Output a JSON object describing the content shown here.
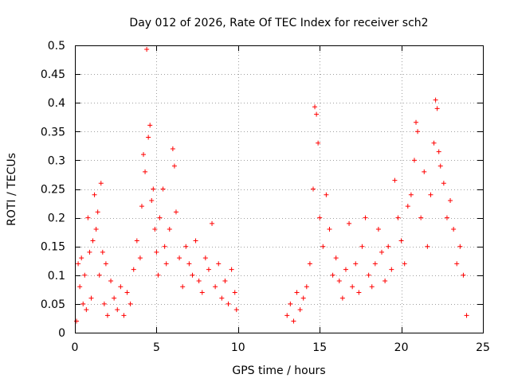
{
  "chart_data": {
    "type": "scatter",
    "title": "Day 012 of 2026, Rate Of TEC Index for receiver sch2",
    "xlabel": "GPS time / hours",
    "ylabel": "ROTI / TECUs",
    "xlim": [
      0,
      25
    ],
    "ylim": [
      0,
      0.5
    ],
    "xticks": [
      0,
      5,
      10,
      15,
      20,
      25
    ],
    "yticks": [
      0,
      0.05,
      0.1,
      0.15,
      0.2,
      0.25,
      0.3,
      0.35,
      0.4,
      0.45,
      0.5
    ],
    "xtick_labels": [
      "0",
      "5",
      "10",
      "15",
      "20",
      "25"
    ],
    "ytick_labels": [
      "0",
      "0.05",
      "0.1",
      "0.15",
      "0.2",
      "0.25",
      "0.3",
      "0.35",
      "0.4",
      "0.45",
      "0.5"
    ],
    "grid": true,
    "marker": "+",
    "marker_color": "#ff0000",
    "series": [
      {
        "points": [
          [
            0.1,
            0.02
          ],
          [
            0.2,
            0.12
          ],
          [
            0.3,
            0.08
          ],
          [
            0.4,
            0.13
          ],
          [
            0.5,
            0.05
          ],
          [
            0.6,
            0.1
          ],
          [
            0.7,
            0.04
          ],
          [
            0.8,
            0.2
          ],
          [
            0.9,
            0.14
          ],
          [
            1.0,
            0.06
          ],
          [
            1.1,
            0.16
          ],
          [
            1.2,
            0.24
          ],
          [
            1.3,
            0.18
          ],
          [
            1.4,
            0.21
          ],
          [
            1.5,
            0.1
          ],
          [
            1.6,
            0.26
          ],
          [
            1.7,
            0.14
          ],
          [
            1.8,
            0.05
          ],
          [
            1.9,
            0.12
          ],
          [
            2.0,
            0.03
          ],
          [
            2.2,
            0.09
          ],
          [
            2.4,
            0.06
          ],
          [
            2.6,
            0.04
          ],
          [
            2.8,
            0.08
          ],
          [
            3.0,
            0.03
          ],
          [
            3.2,
            0.07
          ],
          [
            3.4,
            0.05
          ],
          [
            3.6,
            0.11
          ],
          [
            3.8,
            0.16
          ],
          [
            4.0,
            0.13
          ],
          [
            4.1,
            0.22
          ],
          [
            4.2,
            0.31
          ],
          [
            4.3,
            0.28
          ],
          [
            4.4,
            0.493
          ],
          [
            4.5,
            0.34
          ],
          [
            4.6,
            0.361
          ],
          [
            4.7,
            0.23
          ],
          [
            4.8,
            0.25
          ],
          [
            4.9,
            0.18
          ],
          [
            5.0,
            0.14
          ],
          [
            5.1,
            0.1
          ],
          [
            5.2,
            0.2
          ],
          [
            5.4,
            0.25
          ],
          [
            5.5,
            0.15
          ],
          [
            5.6,
            0.12
          ],
          [
            5.8,
            0.18
          ],
          [
            6.0,
            0.32
          ],
          [
            6.1,
            0.29
          ],
          [
            6.2,
            0.21
          ],
          [
            6.4,
            0.13
          ],
          [
            6.6,
            0.08
          ],
          [
            6.8,
            0.15
          ],
          [
            7.0,
            0.12
          ],
          [
            7.2,
            0.1
          ],
          [
            7.4,
            0.16
          ],
          [
            7.6,
            0.09
          ],
          [
            7.8,
            0.07
          ],
          [
            8.0,
            0.13
          ],
          [
            8.2,
            0.11
          ],
          [
            8.4,
            0.19
          ],
          [
            8.6,
            0.08
          ],
          [
            8.8,
            0.12
          ],
          [
            9.0,
            0.06
          ],
          [
            9.2,
            0.09
          ],
          [
            9.4,
            0.05
          ],
          [
            9.6,
            0.11
          ],
          [
            9.8,
            0.07
          ],
          [
            9.9,
            0.04
          ],
          [
            13.0,
            0.03
          ],
          [
            13.2,
            0.05
          ],
          [
            13.4,
            0.02
          ],
          [
            13.6,
            0.07
          ],
          [
            13.8,
            0.04
          ],
          [
            14.0,
            0.06
          ],
          [
            14.2,
            0.08
          ],
          [
            14.4,
            0.12
          ],
          [
            14.6,
            0.25
          ],
          [
            14.7,
            0.393
          ],
          [
            14.8,
            0.38
          ],
          [
            14.9,
            0.33
          ],
          [
            15.0,
            0.2
          ],
          [
            15.2,
            0.15
          ],
          [
            15.4,
            0.24
          ],
          [
            15.6,
            0.18
          ],
          [
            15.8,
            0.1
          ],
          [
            16.0,
            0.13
          ],
          [
            16.2,
            0.09
          ],
          [
            16.4,
            0.06
          ],
          [
            16.6,
            0.11
          ],
          [
            16.8,
            0.19
          ],
          [
            17.0,
            0.08
          ],
          [
            17.2,
            0.12
          ],
          [
            17.4,
            0.07
          ],
          [
            17.6,
            0.15
          ],
          [
            17.8,
            0.2
          ],
          [
            18.0,
            0.1
          ],
          [
            18.2,
            0.08
          ],
          [
            18.4,
            0.12
          ],
          [
            18.6,
            0.18
          ],
          [
            18.8,
            0.14
          ],
          [
            19.0,
            0.09
          ],
          [
            19.2,
            0.15
          ],
          [
            19.4,
            0.11
          ],
          [
            19.6,
            0.265
          ],
          [
            19.8,
            0.2
          ],
          [
            20.0,
            0.16
          ],
          [
            20.2,
            0.12
          ],
          [
            20.4,
            0.22
          ],
          [
            20.6,
            0.24
          ],
          [
            20.8,
            0.3
          ],
          [
            20.9,
            0.366
          ],
          [
            21.0,
            0.35
          ],
          [
            21.2,
            0.2
          ],
          [
            21.4,
            0.28
          ],
          [
            21.6,
            0.15
          ],
          [
            21.8,
            0.24
          ],
          [
            22.0,
            0.33
          ],
          [
            22.1,
            0.405
          ],
          [
            22.2,
            0.39
          ],
          [
            22.3,
            0.315
          ],
          [
            22.4,
            0.29
          ],
          [
            22.6,
            0.26
          ],
          [
            22.8,
            0.2
          ],
          [
            23.0,
            0.23
          ],
          [
            23.2,
            0.18
          ],
          [
            23.4,
            0.12
          ],
          [
            23.6,
            0.15
          ],
          [
            23.8,
            0.1
          ],
          [
            24.0,
            0.03
          ]
        ]
      }
    ]
  }
}
